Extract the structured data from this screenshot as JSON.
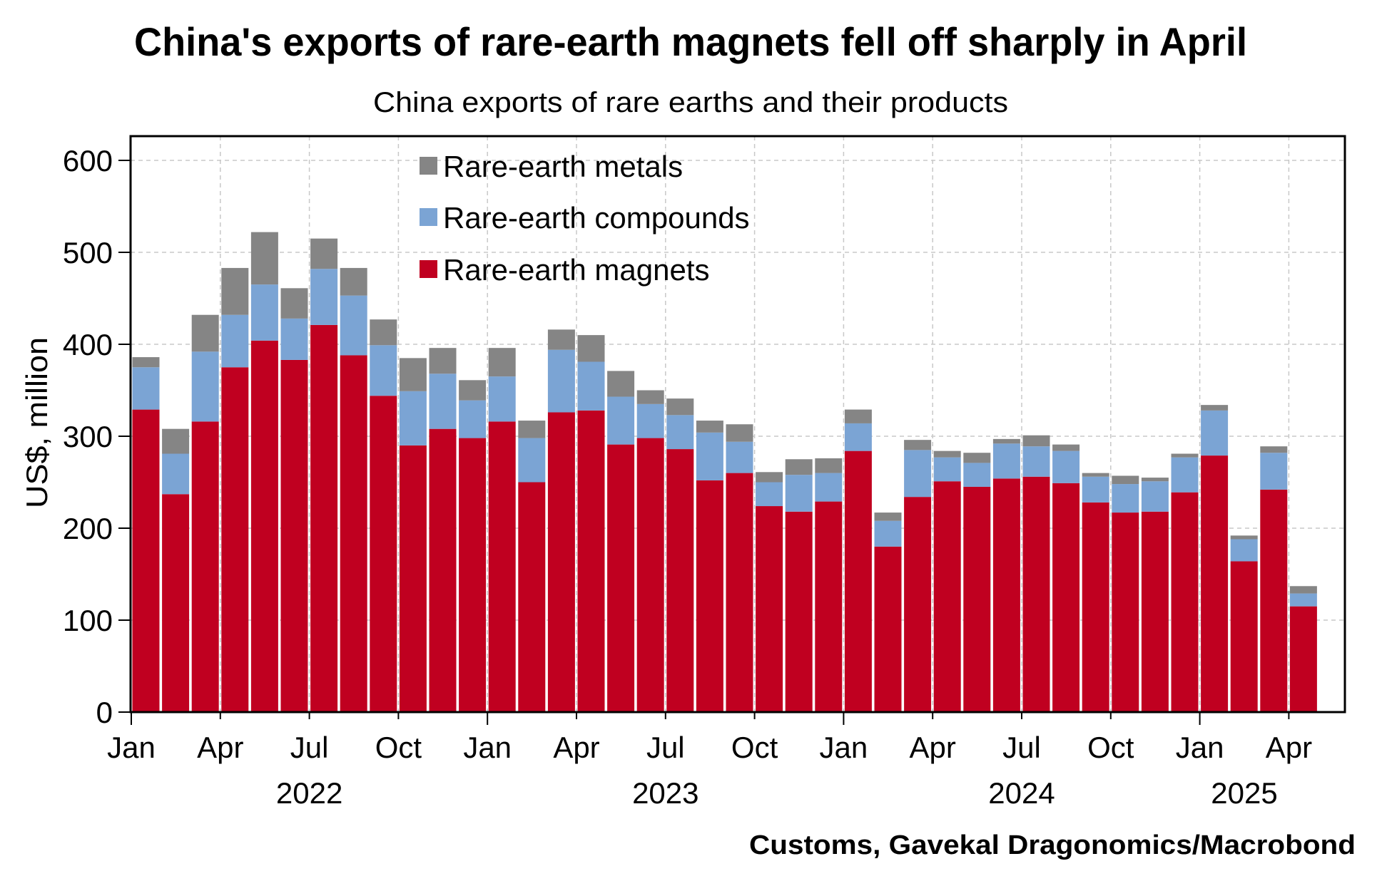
{
  "chart_data": {
    "type": "bar",
    "stacked": true,
    "title": "China's exports of rare-earth magnets fell off sharply in April",
    "subtitle": "China exports of rare earths and their products",
    "ylabel": "US$, million",
    "xlabel": "",
    "source": "Customs, Gavekal Dragonomics/Macrobond",
    "ylim": [
      0,
      600
    ],
    "yticks": [
      "0",
      "100",
      "200",
      "300",
      "400",
      "500",
      "600"
    ],
    "grid": true,
    "legend_position": "top-left",
    "x_tick_labels": [
      "Jan",
      "Apr",
      "Jul",
      "Oct",
      "Jan",
      "Apr",
      "Jul",
      "Oct",
      "Jan",
      "Apr",
      "Jul",
      "Oct",
      "Jan",
      "Apr"
    ],
    "year_labels": [
      "2022",
      "2023",
      "2024",
      "2025"
    ],
    "categories": [
      "2022-01",
      "2022-02",
      "2022-03",
      "2022-04",
      "2022-05",
      "2022-06",
      "2022-07",
      "2022-08",
      "2022-09",
      "2022-10",
      "2022-11",
      "2022-12",
      "2023-01",
      "2023-02",
      "2023-03",
      "2023-04",
      "2023-05",
      "2023-06",
      "2023-07",
      "2023-08",
      "2023-09",
      "2023-10",
      "2023-11",
      "2023-12",
      "2024-01",
      "2024-02",
      "2024-03",
      "2024-04",
      "2024-05",
      "2024-06",
      "2024-07",
      "2024-08",
      "2024-09",
      "2024-10",
      "2024-11",
      "2024-12",
      "2025-01",
      "2025-02",
      "2025-03",
      "2025-04"
    ],
    "series": [
      {
        "name": "Rare-earth magnets",
        "color": "#c00020",
        "values": [
          329,
          237,
          316,
          375,
          404,
          383,
          421,
          388,
          344,
          290,
          308,
          298,
          316,
          250,
          326,
          328,
          291,
          298,
          286,
          252,
          260,
          224,
          218,
          229,
          284,
          180,
          234,
          251,
          245,
          254,
          256,
          249,
          228,
          217,
          218,
          239,
          279,
          164,
          242,
          115
        ]
      },
      {
        "name": "Rare-earth compounds",
        "color": "#7ba4d4",
        "values": [
          46,
          44,
          76,
          57,
          61,
          45,
          61,
          65,
          55,
          59,
          60,
          41,
          49,
          48,
          68,
          53,
          52,
          37,
          37,
          52,
          34,
          26,
          40,
          31,
          30,
          28,
          51,
          26,
          26,
          38,
          33,
          35,
          28,
          31,
          33,
          38,
          49,
          24,
          40,
          14
        ]
      },
      {
        "name": "Rare-earth metals",
        "color": "#858585",
        "values": [
          11,
          27,
          40,
          51,
          57,
          33,
          33,
          30,
          28,
          36,
          28,
          22,
          31,
          19,
          22,
          29,
          28,
          15,
          18,
          13,
          19,
          11,
          17,
          16,
          15,
          9,
          11,
          7,
          11,
          5,
          12,
          7,
          4,
          9,
          4,
          4,
          6,
          4,
          7,
          8
        ]
      }
    ]
  }
}
